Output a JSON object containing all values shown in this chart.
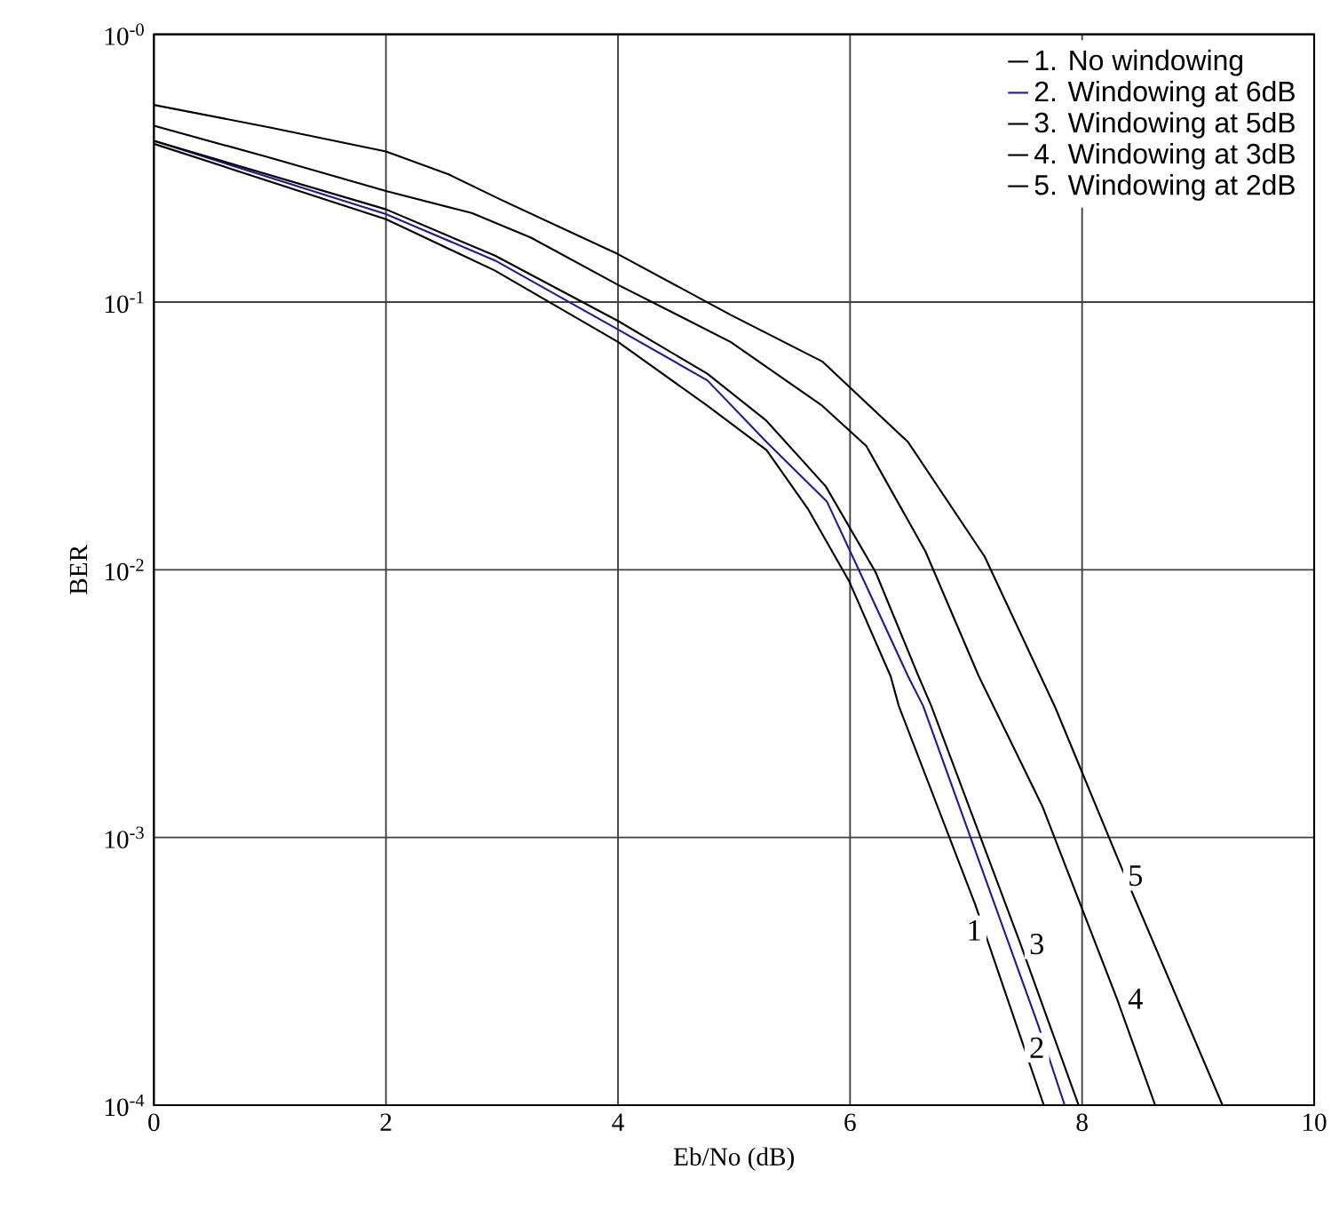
{
  "chart_data": {
    "type": "line",
    "xlabel": "Eb/No (dB)",
    "ylabel": "BER",
    "log": "y",
    "grid": true,
    "legend": "top right",
    "marker": "none",
    "line_style": "solid",
    "xlim": [
      0,
      10
    ],
    "xticks": [
      0,
      2,
      4,
      6,
      8,
      10
    ],
    "ylim": [
      0.0001,
      1
    ],
    "yticks": [
      {
        "value": 1,
        "label": "10$^{-0}$"
      },
      {
        "value": 0.1,
        "label": "10$^{-1}$"
      },
      {
        "value": 0.01,
        "label": "10$^{-2}$"
      },
      {
        "value": 0.001,
        "label": "10$^{-3}$"
      },
      {
        "value": 0.0001,
        "label": "10$^{-4}$"
      }
    ],
    "series": [
      {
        "name": "1. No windowing",
        "color": "#000000",
        "x": [
          0,
          2,
          2.94,
          4,
          4.77,
          5.28,
          5.64,
          5.99,
          6.35,
          6.42,
          7.08,
          7.67
        ],
        "values": [
          0.39,
          0.204,
          0.131,
          0.071,
          0.041,
          0.028,
          0.0168,
          0.0091,
          0.004,
          0.0031,
          0.00056,
          0.0001
        ]
      },
      {
        "name": "2. Windowing at 6dB",
        "color": "#1c1c9c",
        "x": [
          0,
          2,
          2.94,
          4,
          4.77,
          5.28,
          5.8,
          6.14,
          6.5,
          6.63,
          7.62,
          7.85
        ],
        "values": [
          0.4,
          0.213,
          0.143,
          0.079,
          0.051,
          0.03,
          0.018,
          0.0087,
          0.004,
          0.0031,
          0.0002,
          0.0001
        ]
      },
      {
        "name": "3. Windowing at 5dB",
        "color": "#000000",
        "x": [
          0,
          2,
          2.94,
          4,
          4.77,
          5.28,
          5.79,
          6.22,
          6.59,
          6.7,
          7.46,
          7.97
        ],
        "values": [
          0.4,
          0.222,
          0.149,
          0.085,
          0.054,
          0.036,
          0.0205,
          0.0098,
          0.004,
          0.0031,
          0.00041,
          0.0001
        ]
      },
      {
        "name": "4. Windowing at 3dB",
        "color": "#000000",
        "x": [
          0,
          1,
          2,
          2.74,
          3.25,
          4,
          4.97,
          5.76,
          6.14,
          6.65,
          7.11,
          7.66,
          8.3,
          8.63
        ],
        "values": [
          0.456,
          0.346,
          0.26,
          0.215,
          0.174,
          0.116,
          0.071,
          0.041,
          0.029,
          0.0117,
          0.004,
          0.0013,
          0.00025,
          0.0001
        ]
      },
      {
        "name": "5. Windowing at 2dB",
        "color": "#000000",
        "x": [
          0,
          1,
          2,
          2.54,
          3,
          4,
          4.97,
          5.76,
          6.5,
          7.16,
          7.77,
          8.33,
          9.21
        ],
        "values": [
          0.545,
          0.449,
          0.365,
          0.3,
          0.24,
          0.151,
          0.0896,
          0.06,
          0.03,
          0.0112,
          0.00305,
          0.00079,
          0.0001
        ]
      }
    ],
    "annotations": [
      {
        "text": "1",
        "x": 7.07,
        "y": 0.00045
      },
      {
        "text": "2",
        "x": 7.61,
        "y": 0.000164
      },
      {
        "text": "3",
        "x": 7.61,
        "y": 0.0004
      },
      {
        "text": "4",
        "x": 8.46,
        "y": 0.00025
      },
      {
        "text": "5",
        "x": 8.46,
        "y": 0.00072
      }
    ]
  }
}
